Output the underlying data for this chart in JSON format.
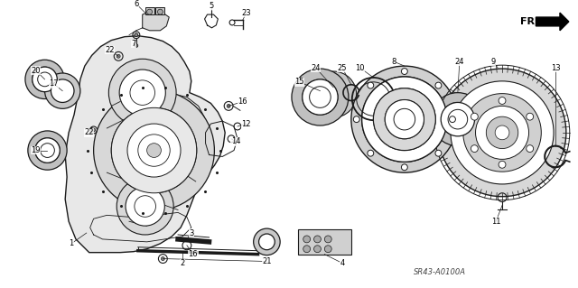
{
  "bg_color": "#ffffff",
  "diagram_code": "SR43-A0100A",
  "figsize": [
    6.4,
    3.19
  ],
  "dpi": 100,
  "parts": {
    "main_body_color": "#f2f2f2",
    "line_color": "#1a1a1a",
    "label_fontsize": 6.0
  }
}
